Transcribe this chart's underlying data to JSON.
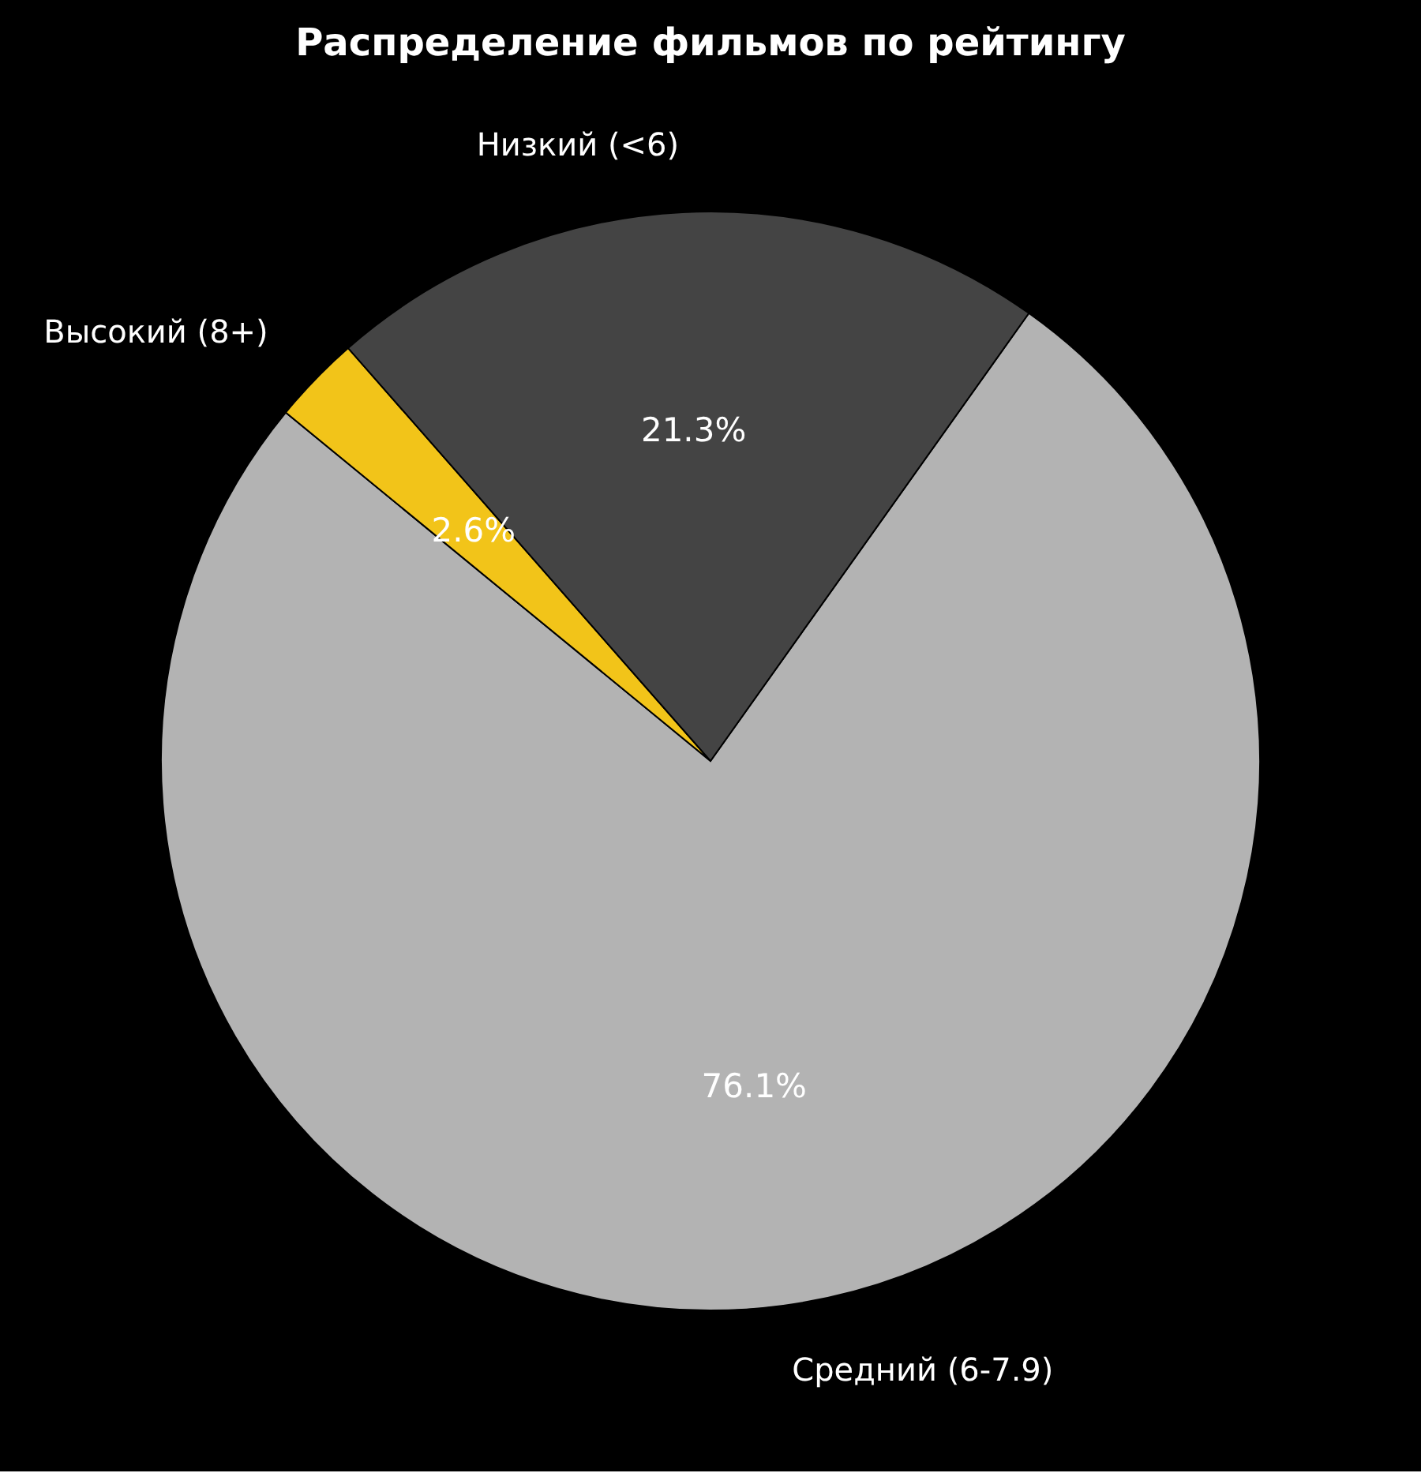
{
  "chart_data": {
    "type": "pie",
    "title": "Распределение фильмов по рейтингу",
    "categories": [
      "Низкий (<6)",
      "Высокий (8+)",
      "Средний (6-7.9)"
    ],
    "values": [
      21.3,
      2.6,
      76.1
    ],
    "colors": [
      "#444444",
      "#f2c419",
      "#b3b3b3"
    ],
    "value_labels": [
      "21.3%",
      "2.6%",
      "76.1%"
    ]
  }
}
